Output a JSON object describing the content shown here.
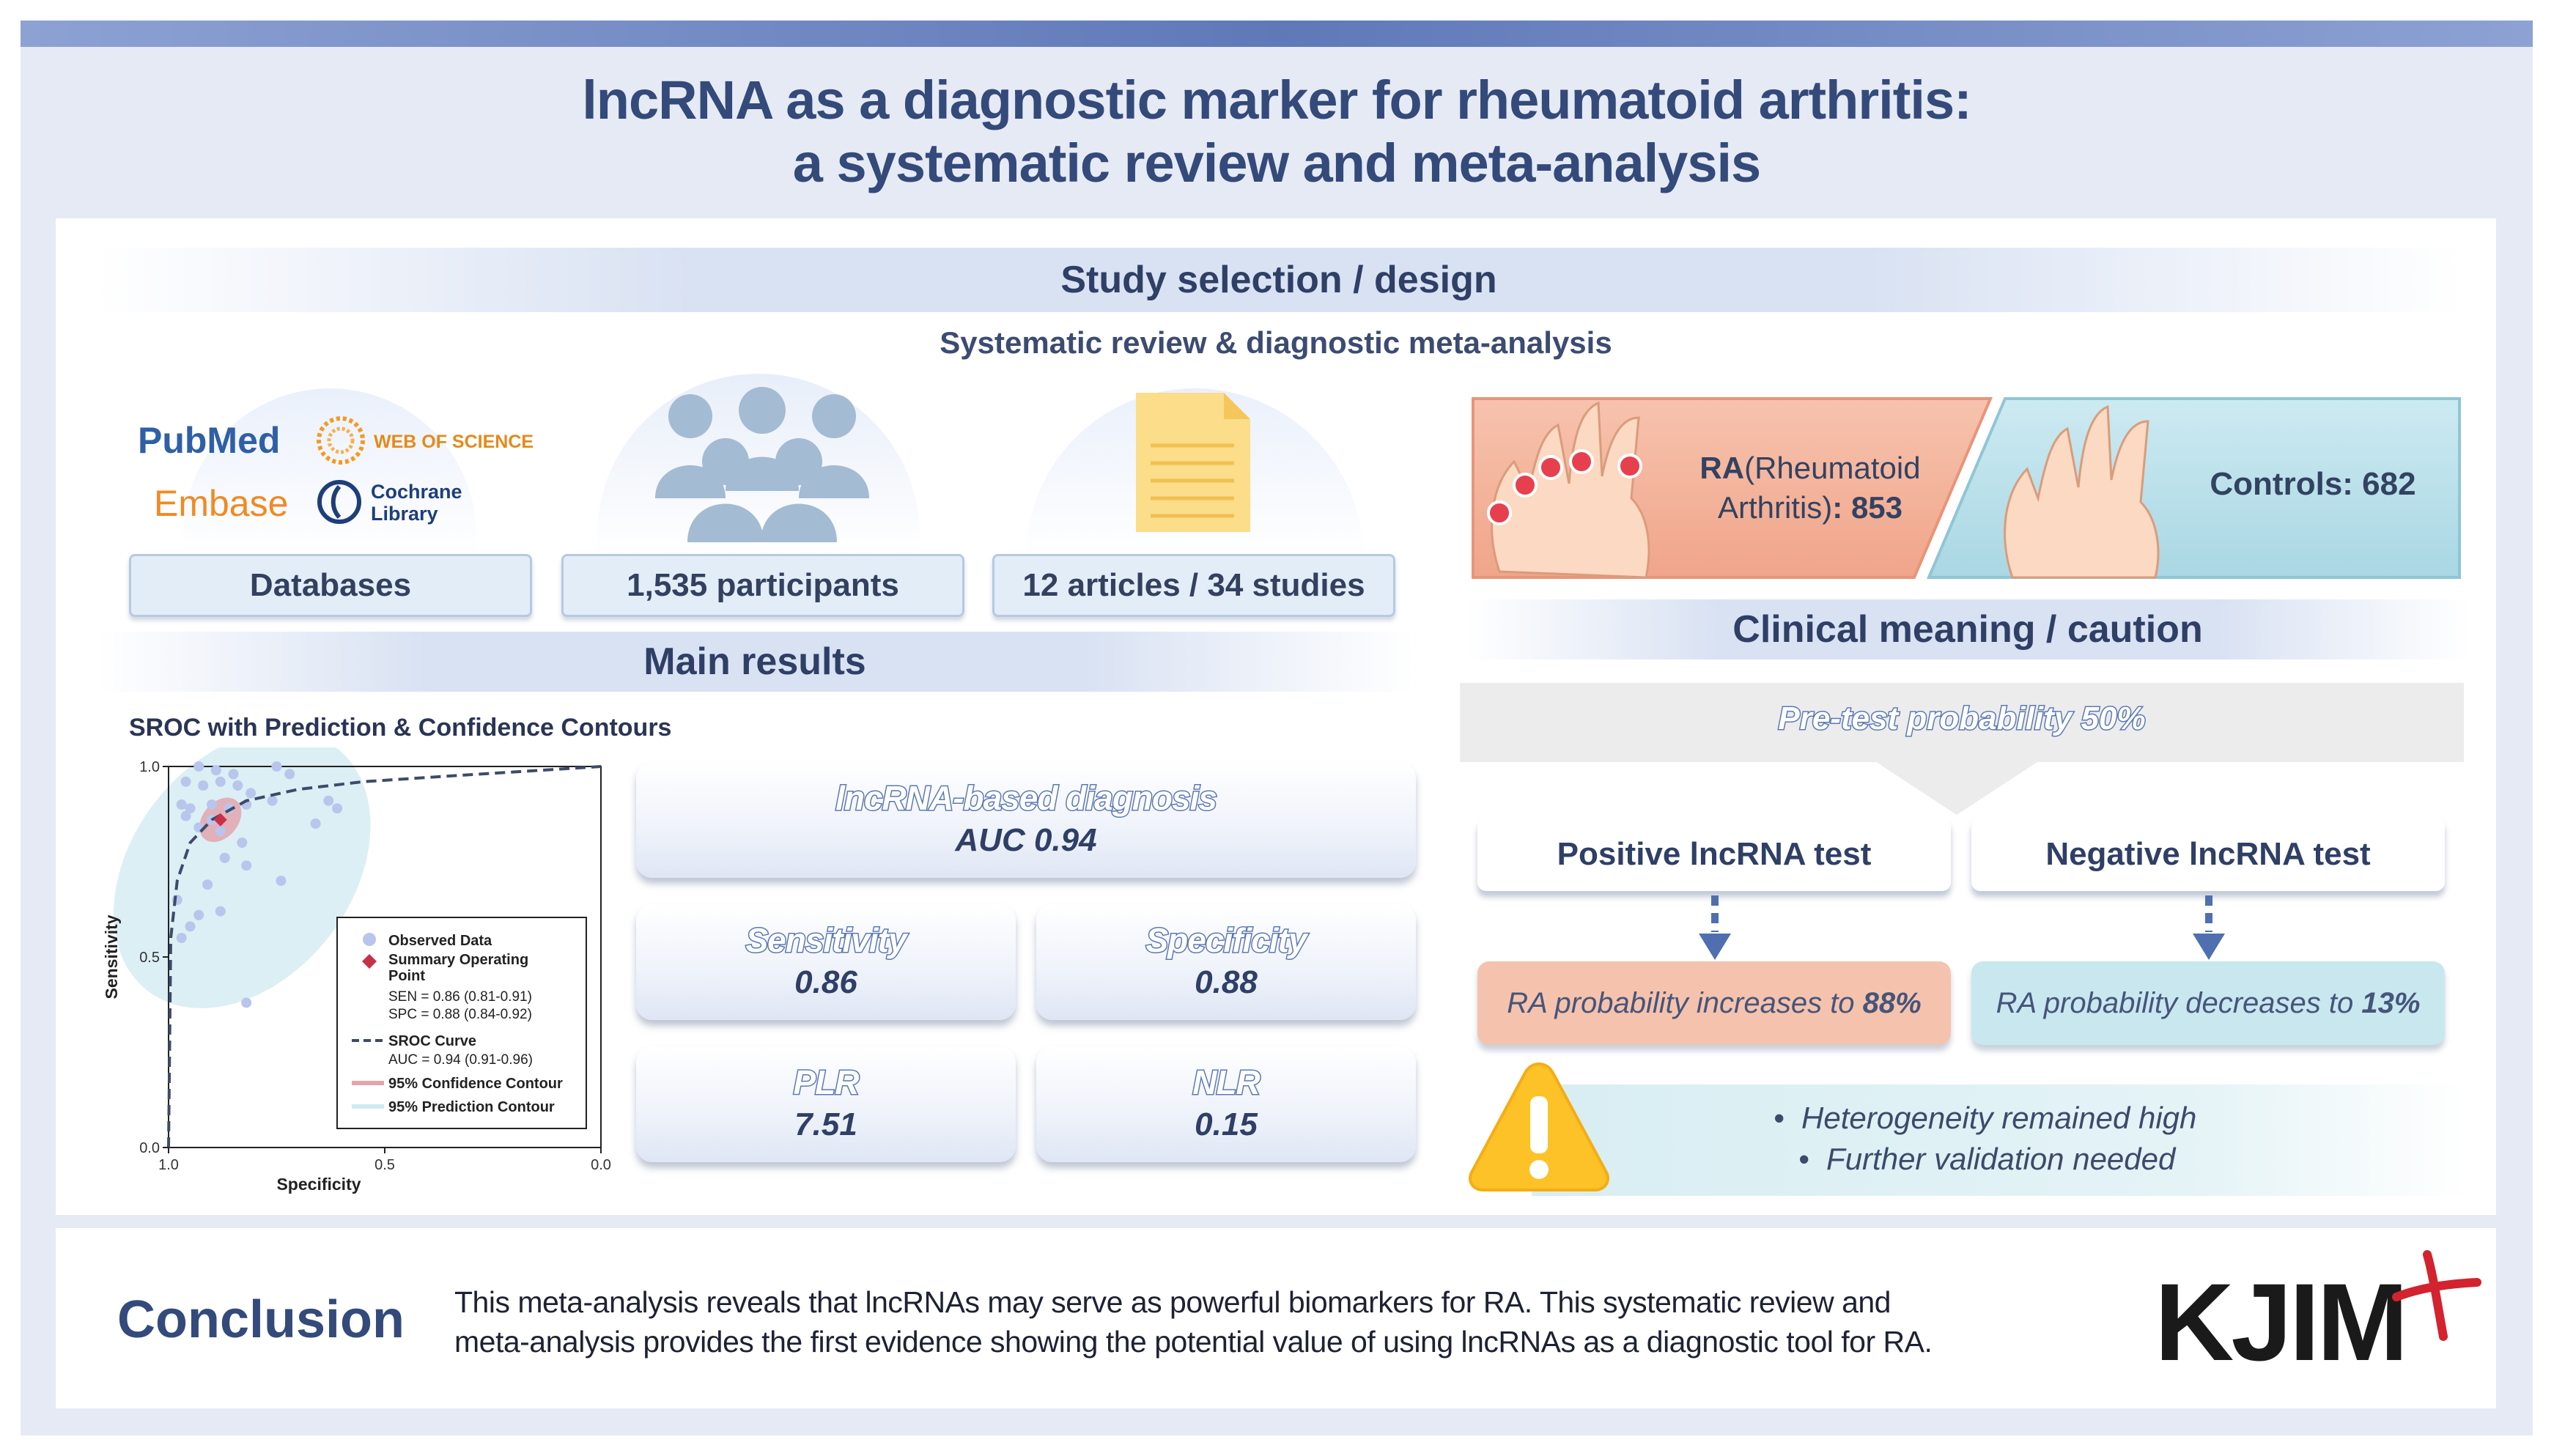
{
  "title": {
    "line1": "lncRNA as a diagnostic marker for rheumatoid arthritis:",
    "line2": "a systematic review and meta-analysis"
  },
  "study": {
    "band": "Study selection / design",
    "subtitle": "Systematic review & diagnostic meta-analysis",
    "logos": {
      "pubmed": "PubMed",
      "wos": "WEB OF SCIENCE",
      "embase": "Embase",
      "cochrane1": "Cochrane",
      "cochrane2": "Library"
    },
    "pills": [
      "Databases",
      "1,535 participants",
      "12 articles / 34 studies"
    ],
    "icons": [
      "people-group-icon",
      "document-icon"
    ],
    "ra_label": "RA",
    "ra_paren": "(Rheumatoid",
    "ra_line2a": "Arthritis)",
    "ra_line2b": ": 853",
    "controls": "Controls: 682"
  },
  "main": {
    "band": "Main results",
    "sroc_title": "SROC with Prediction & Confidence Contours",
    "cards": {
      "auc": {
        "label": "lncRNA-based diagnosis",
        "value": "AUC 0.94"
      },
      "sens": {
        "label": "Sensitivity",
        "value": "0.86"
      },
      "spec": {
        "label": "Specificity",
        "value": "0.88"
      },
      "plr": {
        "label": "PLR",
        "value": "7.51"
      },
      "nlr": {
        "label": "NLR",
        "value": "0.15"
      }
    }
  },
  "chart_data": {
    "type": "scatter",
    "title": "SROC with Prediction & Confidence Contours",
    "xlabel": "Specificity",
    "ylabel": "Sensitivity",
    "xlim": [
      1.0,
      0.0
    ],
    "ylim": [
      0.0,
      1.0
    ],
    "x_ticks": [
      "1.0",
      "0.5",
      "0.0"
    ],
    "y_ticks": [
      "0.0",
      "0.5",
      "1.0"
    ],
    "legend_position": "bottom-right",
    "observed": [
      {
        "x": 0.93,
        "y": 1.0
      },
      {
        "x": 0.89,
        "y": 0.99
      },
      {
        "x": 0.85,
        "y": 0.98
      },
      {
        "x": 0.75,
        "y": 1.0
      },
      {
        "x": 0.72,
        "y": 0.98
      },
      {
        "x": 0.96,
        "y": 0.96
      },
      {
        "x": 0.92,
        "y": 0.95
      },
      {
        "x": 0.88,
        "y": 0.96
      },
      {
        "x": 0.84,
        "y": 0.95
      },
      {
        "x": 0.81,
        "y": 0.93
      },
      {
        "x": 0.97,
        "y": 0.9
      },
      {
        "x": 0.95,
        "y": 0.89
      },
      {
        "x": 0.9,
        "y": 0.9
      },
      {
        "x": 0.82,
        "y": 0.9
      },
      {
        "x": 0.76,
        "y": 0.91
      },
      {
        "x": 0.93,
        "y": 0.84
      },
      {
        "x": 0.88,
        "y": 0.83
      },
      {
        "x": 0.83,
        "y": 0.8
      },
      {
        "x": 0.63,
        "y": 0.91
      },
      {
        "x": 0.61,
        "y": 0.89
      },
      {
        "x": 0.66,
        "y": 0.85
      },
      {
        "x": 0.87,
        "y": 0.76
      },
      {
        "x": 0.82,
        "y": 0.74
      },
      {
        "x": 0.74,
        "y": 0.7
      },
      {
        "x": 0.98,
        "y": 0.65
      },
      {
        "x": 0.93,
        "y": 0.61
      },
      {
        "x": 0.95,
        "y": 0.58
      },
      {
        "x": 0.88,
        "y": 0.62
      },
      {
        "x": 0.91,
        "y": 0.69
      },
      {
        "x": 0.97,
        "y": 0.55
      },
      {
        "x": 0.82,
        "y": 0.38
      },
      {
        "x": 0.96,
        "y": 0.87
      },
      {
        "x": 0.9,
        "y": 0.86
      },
      {
        "x": 0.86,
        "y": 0.89
      }
    ],
    "summary_point": {
      "x": 0.88,
      "y": 0.86
    },
    "sroc_curve": [
      {
        "x": 1.0,
        "y": 0.0
      },
      {
        "x": 0.995,
        "y": 0.55
      },
      {
        "x": 0.98,
        "y": 0.7
      },
      {
        "x": 0.95,
        "y": 0.8
      },
      {
        "x": 0.9,
        "y": 0.86
      },
      {
        "x": 0.82,
        "y": 0.91
      },
      {
        "x": 0.7,
        "y": 0.94
      },
      {
        "x": 0.55,
        "y": 0.96
      },
      {
        "x": 0.35,
        "y": 0.975
      },
      {
        "x": 0.0,
        "y": 1.0
      }
    ],
    "legend": {
      "observed": "Observed Data",
      "summary_a": "Summary Operating",
      "summary_b": "Point",
      "sen": "SEN = 0.86 (0.81-0.91)",
      "spc": "SPC = 0.88 (0.84-0.92)",
      "sroc": "SROC Curve",
      "auc": "AUC = 0.94 (0.91-0.96)",
      "conf": "95% Confidence Contour",
      "pred": "95% Prediction Contour"
    },
    "colors": {
      "observed": "#b9c5ec",
      "summary": "#c8304a",
      "confidence": "#e3a4ad",
      "prediction": "#cfeaf1",
      "curve": "#3d4a6a"
    }
  },
  "clinical": {
    "band": "Clinical meaning / caution",
    "pretest": "Pre-test probability 50%",
    "positive": {
      "title": "Positive lncRNA test",
      "text": "RA probability increases to ",
      "value": "88%"
    },
    "negative": {
      "title": "Negative lncRNA test",
      "text": "RA probability decreases to ",
      "value": "13%"
    },
    "caution": [
      "Heterogeneity remained high",
      "Further validation needed"
    ],
    "icons": [
      "warning-icon",
      "arrow-down-icon"
    ]
  },
  "conclusion": {
    "label": "Conclusion",
    "line1": "This meta-analysis reveals that lncRNAs may serve as powerful biomarkers for RA. This systematic review and",
    "line2": "meta-analysis provides the first evidence showing the potential value of using lncRNAs as a diagnostic tool for RA.",
    "logo": "KJIM"
  },
  "colors": {
    "accent": "#5f79b8",
    "title": "#334a7a",
    "ra": "#f3b9a4",
    "controls": "#bfe3ec",
    "alert": "#c8304a"
  }
}
